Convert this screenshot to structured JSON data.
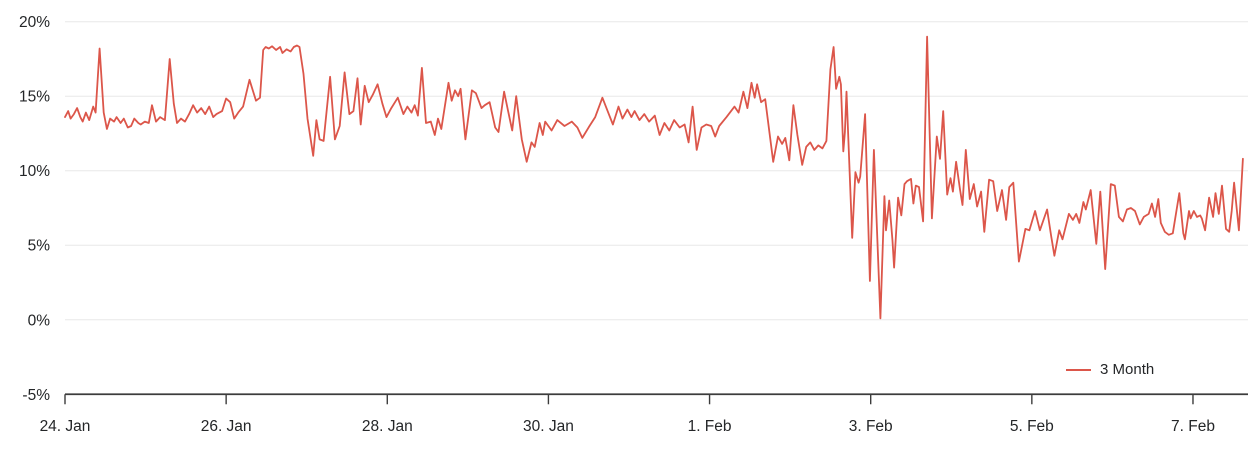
{
  "chart_data": {
    "type": "line",
    "title": "",
    "xlabel": "",
    "ylabel": "",
    "grid": "horizontal",
    "legend_position": "bottom-right",
    "x_axis": {
      "unit": "days-since-24-Jan",
      "range": [
        0,
        14.68
      ],
      "ticks": [
        {
          "t": 0,
          "label": "24. Jan"
        },
        {
          "t": 2,
          "label": "26. Jan"
        },
        {
          "t": 4,
          "label": "28. Jan"
        },
        {
          "t": 6,
          "label": "30. Jan"
        },
        {
          "t": 8,
          "label": "1. Feb"
        },
        {
          "t": 10,
          "label": "3. Feb"
        },
        {
          "t": 12,
          "label": "5. Feb"
        },
        {
          "t": 14,
          "label": "7. Feb"
        }
      ]
    },
    "y_axis": {
      "unit": "%",
      "range": [
        -5,
        20
      ],
      "ticks": [
        {
          "v": 20,
          "label": "20%"
        },
        {
          "v": 15,
          "label": "15%"
        },
        {
          "v": 10,
          "label": "10%"
        },
        {
          "v": 5,
          "label": "5%"
        },
        {
          "v": 0,
          "label": "0%"
        },
        {
          "v": -5,
          "label": "-5%"
        }
      ]
    },
    "series": [
      {
        "name": "3 Month",
        "color": "#dc564a",
        "points": [
          [
            0,
            13.6
          ],
          [
            0.04,
            14.0
          ],
          [
            0.07,
            13.5
          ],
          [
            0.11,
            13.8
          ],
          [
            0.15,
            14.2
          ],
          [
            0.19,
            13.6
          ],
          [
            0.22,
            13.3
          ],
          [
            0.26,
            13.9
          ],
          [
            0.3,
            13.4
          ],
          [
            0.35,
            14.3
          ],
          [
            0.38,
            13.9
          ],
          [
            0.43,
            18.2
          ],
          [
            0.48,
            13.9
          ],
          [
            0.52,
            12.8
          ],
          [
            0.56,
            13.5
          ],
          [
            0.61,
            13.3
          ],
          [
            0.64,
            13.6
          ],
          [
            0.69,
            13.2
          ],
          [
            0.73,
            13.5
          ],
          [
            0.78,
            12.9
          ],
          [
            0.82,
            13.0
          ],
          [
            0.86,
            13.5
          ],
          [
            0.91,
            13.2
          ],
          [
            0.94,
            13.1
          ],
          [
            0.99,
            13.3
          ],
          [
            1.04,
            13.2
          ],
          [
            1.08,
            14.4
          ],
          [
            1.13,
            13.3
          ],
          [
            1.18,
            13.6
          ],
          [
            1.24,
            13.4
          ],
          [
            1.3,
            17.5
          ],
          [
            1.35,
            14.5
          ],
          [
            1.39,
            13.2
          ],
          [
            1.44,
            13.5
          ],
          [
            1.49,
            13.3
          ],
          [
            1.54,
            13.8
          ],
          [
            1.59,
            14.4
          ],
          [
            1.64,
            13.9
          ],
          [
            1.69,
            14.2
          ],
          [
            1.74,
            13.8
          ],
          [
            1.79,
            14.3
          ],
          [
            1.84,
            13.6
          ],
          [
            1.88,
            13.8
          ],
          [
            1.95,
            14.0
          ],
          [
            2.0,
            14.85
          ],
          [
            2.05,
            14.6
          ],
          [
            2.1,
            13.5
          ],
          [
            2.15,
            13.9
          ],
          [
            2.21,
            14.3
          ],
          [
            2.29,
            16.1
          ],
          [
            2.37,
            14.7
          ],
          [
            2.42,
            14.9
          ],
          [
            2.46,
            18.1
          ],
          [
            2.49,
            18.3
          ],
          [
            2.53,
            18.2
          ],
          [
            2.57,
            18.35
          ],
          [
            2.62,
            18.1
          ],
          [
            2.67,
            18.3
          ],
          [
            2.7,
            17.9
          ],
          [
            2.75,
            18.15
          ],
          [
            2.8,
            18.0
          ],
          [
            2.84,
            18.3
          ],
          [
            2.88,
            18.4
          ],
          [
            2.91,
            18.3
          ],
          [
            2.96,
            16.5
          ],
          [
            3.01,
            13.5
          ],
          [
            3.08,
            11.0
          ],
          [
            3.12,
            13.4
          ],
          [
            3.16,
            12.1
          ],
          [
            3.21,
            12.0
          ],
          [
            3.29,
            16.3
          ],
          [
            3.35,
            12.1
          ],
          [
            3.41,
            13.0
          ],
          [
            3.47,
            16.6
          ],
          [
            3.53,
            13.8
          ],
          [
            3.58,
            14.0
          ],
          [
            3.63,
            16.2
          ],
          [
            3.67,
            13.1
          ],
          [
            3.72,
            15.7
          ],
          [
            3.77,
            14.6
          ],
          [
            3.82,
            15.1
          ],
          [
            3.88,
            15.8
          ],
          [
            3.94,
            14.5
          ],
          [
            3.99,
            13.6
          ],
          [
            4.05,
            14.2
          ],
          [
            4.13,
            14.9
          ],
          [
            4.2,
            13.8
          ],
          [
            4.25,
            14.3
          ],
          [
            4.3,
            13.9
          ],
          [
            4.34,
            14.4
          ],
          [
            4.38,
            13.7
          ],
          [
            4.43,
            16.9
          ],
          [
            4.48,
            13.2
          ],
          [
            4.54,
            13.3
          ],
          [
            4.59,
            12.4
          ],
          [
            4.63,
            13.5
          ],
          [
            4.67,
            12.8
          ],
          [
            4.76,
            15.9
          ],
          [
            4.8,
            14.7
          ],
          [
            4.84,
            15.4
          ],
          [
            4.88,
            15.0
          ],
          [
            4.91,
            15.5
          ],
          [
            4.97,
            12.1
          ],
          [
            5.05,
            15.4
          ],
          [
            5.1,
            15.2
          ],
          [
            5.17,
            14.2
          ],
          [
            5.21,
            14.4
          ],
          [
            5.27,
            14.6
          ],
          [
            5.34,
            12.9
          ],
          [
            5.38,
            12.6
          ],
          [
            5.45,
            15.3
          ],
          [
            5.5,
            14.0
          ],
          [
            5.55,
            12.7
          ],
          [
            5.6,
            15.0
          ],
          [
            5.67,
            12.1
          ],
          [
            5.73,
            10.6
          ],
          [
            5.79,
            11.9
          ],
          [
            5.83,
            11.6
          ],
          [
            5.89,
            13.2
          ],
          [
            5.93,
            12.4
          ],
          [
            5.96,
            13.3
          ],
          [
            6.04,
            12.7
          ],
          [
            6.11,
            13.4
          ],
          [
            6.2,
            13.0
          ],
          [
            6.29,
            13.3
          ],
          [
            6.36,
            12.9
          ],
          [
            6.42,
            12.2
          ],
          [
            6.51,
            13.0
          ],
          [
            6.58,
            13.6
          ],
          [
            6.67,
            14.9
          ],
          [
            6.75,
            13.8
          ],
          [
            6.8,
            13.1
          ],
          [
            6.87,
            14.3
          ],
          [
            6.92,
            13.5
          ],
          [
            6.98,
            14.1
          ],
          [
            7.03,
            13.6
          ],
          [
            7.07,
            14.0
          ],
          [
            7.13,
            13.4
          ],
          [
            7.19,
            13.8
          ],
          [
            7.25,
            13.3
          ],
          [
            7.32,
            13.7
          ],
          [
            7.38,
            12.4
          ],
          [
            7.44,
            13.2
          ],
          [
            7.5,
            12.7
          ],
          [
            7.56,
            13.4
          ],
          [
            7.63,
            12.9
          ],
          [
            7.69,
            13.1
          ],
          [
            7.74,
            11.9
          ],
          [
            7.79,
            14.3
          ],
          [
            7.84,
            11.4
          ],
          [
            7.9,
            12.9
          ],
          [
            7.96,
            13.1
          ],
          [
            8.02,
            13.0
          ],
          [
            8.07,
            12.3
          ],
          [
            8.12,
            13.0
          ],
          [
            8.21,
            13.6
          ],
          [
            8.31,
            14.3
          ],
          [
            8.36,
            13.9
          ],
          [
            8.42,
            15.3
          ],
          [
            8.47,
            14.2
          ],
          [
            8.52,
            15.9
          ],
          [
            8.56,
            14.9
          ],
          [
            8.59,
            15.8
          ],
          [
            8.64,
            14.6
          ],
          [
            8.69,
            14.8
          ],
          [
            8.74,
            12.7
          ],
          [
            8.79,
            10.6
          ],
          [
            8.85,
            12.3
          ],
          [
            8.9,
            11.8
          ],
          [
            8.94,
            12.2
          ],
          [
            8.99,
            10.7
          ],
          [
            9.04,
            14.4
          ],
          [
            9.09,
            12.4
          ],
          [
            9.15,
            10.4
          ],
          [
            9.2,
            11.6
          ],
          [
            9.25,
            11.9
          ],
          [
            9.3,
            11.4
          ],
          [
            9.35,
            11.7
          ],
          [
            9.4,
            11.5
          ],
          [
            9.45,
            12.0
          ],
          [
            9.5,
            16.8
          ],
          [
            9.54,
            18.3
          ],
          [
            9.57,
            15.5
          ],
          [
            9.61,
            16.3
          ],
          [
            9.63,
            15.8
          ],
          [
            9.66,
            11.3
          ],
          [
            9.68,
            12.6
          ],
          [
            9.7,
            15.3
          ],
          [
            9.77,
            5.5
          ],
          [
            9.81,
            9.9
          ],
          [
            9.85,
            9.2
          ],
          [
            9.87,
            9.6
          ],
          [
            9.93,
            13.8
          ],
          [
            9.99,
            2.6
          ],
          [
            10.04,
            11.4
          ],
          [
            10.12,
            0.1
          ],
          [
            10.17,
            8.3
          ],
          [
            10.19,
            6.0
          ],
          [
            10.23,
            8.0
          ],
          [
            10.27,
            5.3
          ],
          [
            10.29,
            3.5
          ],
          [
            10.34,
            8.2
          ],
          [
            10.38,
            7.0
          ],
          [
            10.42,
            9.1
          ],
          [
            10.45,
            9.3
          ],
          [
            10.5,
            9.45
          ],
          [
            10.53,
            7.8
          ],
          [
            10.56,
            9.0
          ],
          [
            10.6,
            8.9
          ],
          [
            10.65,
            6.6
          ],
          [
            10.7,
            19.0
          ],
          [
            10.76,
            6.8
          ],
          [
            10.82,
            12.3
          ],
          [
            10.86,
            10.8
          ],
          [
            10.9,
            14.0
          ],
          [
            10.95,
            8.4
          ],
          [
            10.99,
            9.5
          ],
          [
            11.02,
            8.6
          ],
          [
            11.06,
            10.6
          ],
          [
            11.11,
            8.7
          ],
          [
            11.14,
            7.7
          ],
          [
            11.18,
            11.4
          ],
          [
            11.23,
            8.1
          ],
          [
            11.28,
            9.1
          ],
          [
            11.32,
            7.6
          ],
          [
            11.37,
            8.6
          ],
          [
            11.41,
            5.9
          ],
          [
            11.47,
            9.4
          ],
          [
            11.52,
            9.3
          ],
          [
            11.57,
            7.3
          ],
          [
            11.63,
            8.7
          ],
          [
            11.68,
            6.7
          ],
          [
            11.72,
            8.9
          ],
          [
            11.77,
            9.2
          ],
          [
            11.84,
            3.9
          ],
          [
            11.92,
            6.1
          ],
          [
            11.97,
            6.0
          ],
          [
            12.04,
            7.3
          ],
          [
            12.1,
            6.0
          ],
          [
            12.19,
            7.4
          ],
          [
            12.24,
            5.6
          ],
          [
            12.28,
            4.3
          ],
          [
            12.34,
            6.0
          ],
          [
            12.38,
            5.4
          ],
          [
            12.46,
            7.1
          ],
          [
            12.51,
            6.7
          ],
          [
            12.55,
            7.1
          ],
          [
            12.59,
            6.5
          ],
          [
            12.64,
            7.9
          ],
          [
            12.67,
            7.4
          ],
          [
            12.73,
            8.7
          ],
          [
            12.8,
            5.1
          ],
          [
            12.85,
            8.6
          ],
          [
            12.91,
            3.4
          ],
          [
            12.98,
            9.1
          ],
          [
            13.03,
            9.0
          ],
          [
            13.08,
            6.9
          ],
          [
            13.13,
            6.6
          ],
          [
            13.18,
            7.4
          ],
          [
            13.23,
            7.5
          ],
          [
            13.28,
            7.3
          ],
          [
            13.34,
            6.4
          ],
          [
            13.39,
            6.9
          ],
          [
            13.45,
            7.1
          ],
          [
            13.49,
            7.8
          ],
          [
            13.53,
            6.9
          ],
          [
            13.57,
            8.1
          ],
          [
            13.6,
            6.5
          ],
          [
            13.65,
            5.9
          ],
          [
            13.7,
            5.7
          ],
          [
            13.75,
            5.8
          ],
          [
            13.83,
            8.5
          ],
          [
            13.88,
            5.8
          ],
          [
            13.9,
            5.4
          ],
          [
            13.95,
            7.3
          ],
          [
            13.97,
            6.8
          ],
          [
            14.01,
            7.3
          ],
          [
            14.05,
            6.9
          ],
          [
            14.09,
            7.0
          ],
          [
            14.11,
            6.8
          ],
          [
            14.15,
            6.0
          ],
          [
            14.2,
            8.2
          ],
          [
            14.25,
            6.9
          ],
          [
            14.28,
            8.5
          ],
          [
            14.32,
            7.1
          ],
          [
            14.36,
            9.0
          ],
          [
            14.41,
            6.1
          ],
          [
            14.45,
            5.9
          ],
          [
            14.48,
            7.3
          ],
          [
            14.51,
            9.2
          ],
          [
            14.57,
            6.0
          ],
          [
            14.62,
            10.8
          ]
        ]
      }
    ]
  },
  "legend": {
    "label": "3 Month"
  },
  "colors": {
    "series": "#dc564a",
    "grid": "#e8e8e8",
    "axis": "#3c3c3c",
    "text": "#242628",
    "background": "#ffffff"
  }
}
